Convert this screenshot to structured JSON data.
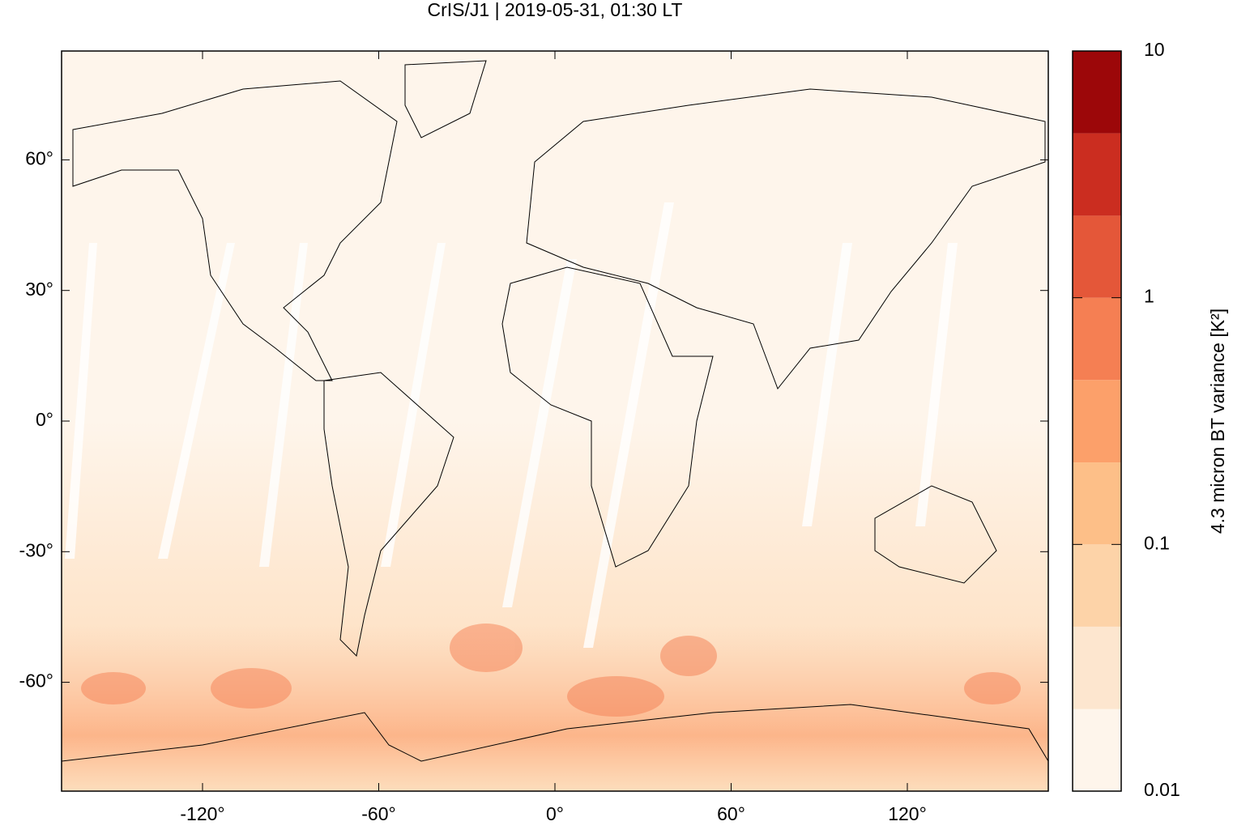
{
  "chart_data": {
    "type": "map",
    "title": "CrIS/J1 | 2019-05-31, 01:30 LT",
    "xlim": [
      -168,
      168
    ],
    "ylim": [
      -85,
      85
    ],
    "xticks": [
      {
        "value": -120,
        "label": "-120°"
      },
      {
        "value": -60,
        "label": "-60°"
      },
      {
        "value": 0,
        "label": "0°"
      },
      {
        "value": 60,
        "label": "60°"
      },
      {
        "value": 120,
        "label": "120°"
      }
    ],
    "yticks": [
      {
        "value": 60,
        "label": "60°"
      },
      {
        "value": 30,
        "label": "30°"
      },
      {
        "value": 0,
        "label": "0°"
      },
      {
        "value": -30,
        "label": "-30°"
      },
      {
        "value": -60,
        "label": "-60°"
      }
    ],
    "colorbar": {
      "label": "4.3 micron BT variance [K²]",
      "log_scale": true,
      "lim": [
        0.01,
        10
      ],
      "ticks": [
        0.01,
        0.1,
        1,
        10
      ],
      "levels": [
        0.01,
        0.0215,
        0.0464,
        0.1,
        0.215,
        0.464,
        1,
        2.15,
        4.64,
        10
      ],
      "colors": [
        "#fef5eb",
        "#fde6cf",
        "#fdd3a8",
        "#fdbf88",
        "#fca06a",
        "#f57f53",
        "#e45739",
        "#cb2d20",
        "#9c0709"
      ]
    }
  }
}
